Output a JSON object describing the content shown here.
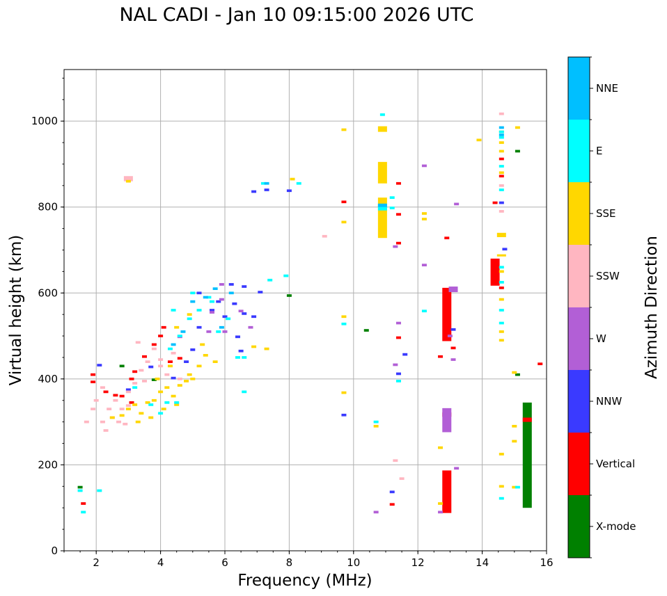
{
  "chart_data": {
    "type": "scatter",
    "title": "NAL CADI - Jan 10 09:15:00 2026 UTC",
    "xlabel": "Frequency (MHz)",
    "ylabel": "Virtual height (km)",
    "xlim": [
      1,
      16
    ],
    "ylim": [
      0,
      1120
    ],
    "xticks": [
      2,
      4,
      6,
      8,
      10,
      12,
      14,
      16
    ],
    "yticks": [
      0,
      200,
      400,
      600,
      800,
      1000
    ],
    "grid": true,
    "colorbar": {
      "label": "Azimuth Direction",
      "categories": [
        "X-mode",
        "Vertical",
        "NNW",
        "W",
        "SSW",
        "SSE",
        "E",
        "NNE"
      ],
      "colors": [
        "#008000",
        "#ff0000",
        "#3a3aff",
        "#b25fd6",
        "#ffb6c1",
        "#ffd700",
        "#00ffff",
        "#00bfff"
      ]
    },
    "series": [
      {
        "name": "X-mode",
        "points": [
          [
            15.4,
            100,
            345
          ],
          [
            10.4,
            513,
            513
          ],
          [
            15.1,
            930,
            930
          ],
          [
            15.1,
            410,
            410
          ],
          [
            8.0,
            594,
            594
          ],
          [
            1.5,
            148,
            148
          ],
          [
            3.8,
            398,
            398
          ],
          [
            2.8,
            430,
            430
          ]
        ]
      },
      {
        "name": "Vertical",
        "points": [
          [
            12.9,
            488,
            612
          ],
          [
            12.9,
            88,
            187
          ],
          [
            14.4,
            617,
            680
          ],
          [
            12.9,
            312,
            322
          ],
          [
            12.9,
            728,
            728
          ],
          [
            15.4,
            300,
            310
          ],
          [
            9.7,
            812,
            812
          ],
          [
            11.4,
            855,
            855
          ],
          [
            11.4,
            783,
            783
          ],
          [
            11.4,
            716,
            716
          ],
          [
            11.4,
            496,
            496
          ],
          [
            13.1,
            472,
            472
          ],
          [
            12.7,
            452,
            452
          ],
          [
            14.6,
            612,
            612
          ],
          [
            14.4,
            810,
            810
          ],
          [
            14.6,
            872,
            872
          ],
          [
            14.6,
            912,
            912
          ],
          [
            11.2,
            108,
            108
          ],
          [
            15.8,
            435,
            435
          ],
          [
            1.6,
            110,
            110
          ],
          [
            1.9,
            393,
            393
          ],
          [
            1.9,
            410,
            410
          ],
          [
            2.3,
            370,
            370
          ],
          [
            2.6,
            362,
            362
          ],
          [
            2.8,
            360,
            360
          ],
          [
            3.1,
            400,
            400
          ],
          [
            3.2,
            417,
            417
          ],
          [
            3.5,
            452,
            452
          ],
          [
            3.8,
            480,
            480
          ],
          [
            4.0,
            500,
            500
          ],
          [
            4.3,
            440,
            440
          ],
          [
            3.1,
            345,
            345
          ],
          [
            4.1,
            520,
            520
          ],
          [
            4.6,
            448,
            448
          ]
        ]
      },
      {
        "name": "NNW",
        "points": [
          [
            13.1,
            515,
            515
          ],
          [
            11.4,
            412,
            412
          ],
          [
            11.6,
            457,
            457
          ],
          [
            11.2,
            137,
            137
          ],
          [
            9.7,
            316,
            316
          ],
          [
            14.7,
            702,
            702
          ],
          [
            14.6,
            810,
            810
          ],
          [
            8.0,
            838,
            838
          ],
          [
            7.3,
            840,
            840
          ],
          [
            6.9,
            836,
            836
          ],
          [
            6.2,
            620,
            620
          ],
          [
            6.6,
            615,
            615
          ],
          [
            5.2,
            600,
            600
          ],
          [
            5.6,
            560,
            560
          ],
          [
            6.0,
            545,
            545
          ],
          [
            6.3,
            575,
            575
          ],
          [
            6.6,
            552,
            552
          ],
          [
            6.9,
            545,
            545
          ],
          [
            6.5,
            465,
            465
          ],
          [
            5.0,
            468,
            468
          ],
          [
            5.2,
            520,
            520
          ],
          [
            5.8,
            580,
            580
          ],
          [
            4.8,
            440,
            440
          ],
          [
            6.4,
            498,
            498
          ],
          [
            7.1,
            602,
            602
          ],
          [
            2.1,
            432,
            432
          ],
          [
            3.0,
            375,
            375
          ],
          [
            3.7,
            428,
            428
          ],
          [
            4.4,
            402,
            402
          ]
        ]
      },
      {
        "name": "W",
        "points": [
          [
            12.9,
            276,
            332
          ],
          [
            13.1,
            602,
            615
          ],
          [
            13.0,
            500,
            500
          ],
          [
            13.1,
            445,
            445
          ],
          [
            13.2,
            807,
            807
          ],
          [
            12.2,
            665,
            665
          ],
          [
            12.2,
            896,
            896
          ],
          [
            11.3,
            433,
            433
          ],
          [
            11.4,
            530,
            530
          ],
          [
            11.3,
            708,
            708
          ],
          [
            10.7,
            90,
            90
          ],
          [
            12.7,
            90,
            90
          ],
          [
            13.2,
            192,
            192
          ],
          [
            5.9,
            585,
            585
          ],
          [
            5.6,
            555,
            555
          ],
          [
            6.0,
            510,
            510
          ],
          [
            6.8,
            520,
            520
          ],
          [
            6.5,
            558,
            558
          ],
          [
            5.5,
            510,
            510
          ],
          [
            4.6,
            498,
            498
          ],
          [
            5.9,
            620,
            620
          ]
        ]
      },
      {
        "name": "SSW",
        "points": [
          [
            11.3,
            210,
            210
          ],
          [
            11.5,
            168,
            168
          ],
          [
            14.6,
            1017,
            1017
          ],
          [
            14.6,
            850,
            850
          ],
          [
            14.6,
            790,
            790
          ],
          [
            9.1,
            732,
            732
          ],
          [
            2.2,
            300,
            300
          ],
          [
            2.4,
            330,
            330
          ],
          [
            2.6,
            350,
            350
          ],
          [
            2.8,
            330,
            330
          ],
          [
            3.0,
            370,
            370
          ],
          [
            3.2,
            390,
            390
          ],
          [
            3.4,
            420,
            420
          ],
          [
            3.6,
            440,
            440
          ],
          [
            3.8,
            470,
            470
          ],
          [
            4.0,
            430,
            430
          ],
          [
            4.2,
            410,
            410
          ],
          [
            4.4,
            460,
            460
          ],
          [
            4.6,
            400,
            400
          ],
          [
            2.0,
            350,
            350
          ],
          [
            2.2,
            380,
            380
          ],
          [
            2.5,
            310,
            310
          ],
          [
            2.7,
            300,
            300
          ],
          [
            3.0,
            338,
            338
          ],
          [
            3.3,
            485,
            485
          ],
          [
            1.7,
            300,
            300
          ],
          [
            1.9,
            330,
            330
          ],
          [
            3.0,
            860,
            872
          ],
          [
            2.9,
            295,
            295
          ],
          [
            2.3,
            280,
            280
          ],
          [
            4.0,
            445,
            445
          ],
          [
            3.5,
            395,
            395
          ]
        ]
      },
      {
        "name": "SSE",
        "points": [
          [
            10.9,
            728,
            822
          ],
          [
            10.9,
            855,
            905
          ],
          [
            10.9,
            975,
            988
          ],
          [
            15.1,
            985,
            985
          ],
          [
            14.6,
            730,
            740
          ],
          [
            14.6,
            685,
            690
          ],
          [
            14.6,
            650,
            650
          ],
          [
            14.6,
            585,
            585
          ],
          [
            14.6,
            510,
            510
          ],
          [
            14.6,
            490,
            490
          ],
          [
            14.6,
            225,
            225
          ],
          [
            14.6,
            150,
            150
          ],
          [
            15.0,
            415,
            415
          ],
          [
            15.0,
            290,
            290
          ],
          [
            15.0,
            255,
            255
          ],
          [
            15.0,
            148,
            148
          ],
          [
            12.7,
            240,
            240
          ],
          [
            12.7,
            110,
            110
          ],
          [
            12.2,
            785,
            785
          ],
          [
            12.2,
            772,
            772
          ],
          [
            13.9,
            956,
            956
          ],
          [
            9.7,
            980,
            980
          ],
          [
            9.7,
            765,
            765
          ],
          [
            9.7,
            545,
            545
          ],
          [
            9.7,
            368,
            368
          ],
          [
            10.7,
            290,
            290
          ],
          [
            3.0,
            860,
            860
          ],
          [
            2.5,
            310,
            310
          ],
          [
            2.8,
            315,
            315
          ],
          [
            3.0,
            330,
            330
          ],
          [
            3.2,
            340,
            340
          ],
          [
            3.4,
            320,
            320
          ],
          [
            3.6,
            345,
            345
          ],
          [
            3.8,
            350,
            350
          ],
          [
            4.0,
            370,
            370
          ],
          [
            4.2,
            380,
            380
          ],
          [
            4.4,
            360,
            360
          ],
          [
            4.6,
            385,
            385
          ],
          [
            4.8,
            395,
            395
          ],
          [
            5.0,
            400,
            400
          ],
          [
            5.2,
            430,
            430
          ],
          [
            5.4,
            455,
            455
          ],
          [
            3.9,
            400,
            400
          ],
          [
            4.3,
            430,
            430
          ],
          [
            4.5,
            520,
            520
          ],
          [
            4.9,
            550,
            550
          ],
          [
            5.3,
            480,
            480
          ],
          [
            5.7,
            440,
            440
          ],
          [
            3.3,
            300,
            300
          ],
          [
            3.7,
            310,
            310
          ],
          [
            4.1,
            330,
            330
          ],
          [
            4.5,
            340,
            340
          ],
          [
            4.9,
            410,
            410
          ],
          [
            6.9,
            475,
            475
          ],
          [
            7.3,
            470,
            470
          ],
          [
            8.1,
            865,
            865
          ],
          [
            14.6,
            930,
            930
          ],
          [
            14.6,
            950,
            950
          ],
          [
            14.6,
            880,
            880
          ],
          [
            14.6,
            975,
            975
          ]
        ]
      },
      {
        "name": "E",
        "points": [
          [
            10.9,
            792,
            805
          ],
          [
            10.9,
            1015,
            1015
          ],
          [
            11.2,
            822,
            822
          ],
          [
            11.2,
            798,
            798
          ],
          [
            11.4,
            395,
            395
          ],
          [
            12.2,
            558,
            558
          ],
          [
            14.6,
            530,
            530
          ],
          [
            14.6,
            560,
            560
          ],
          [
            14.6,
            625,
            625
          ],
          [
            14.6,
            660,
            660
          ],
          [
            14.6,
            840,
            840
          ],
          [
            14.6,
            895,
            895
          ],
          [
            14.6,
            962,
            962
          ],
          [
            14.6,
            975,
            975
          ],
          [
            14.6,
            122,
            122
          ],
          [
            15.1,
            148,
            148
          ],
          [
            9.7,
            528,
            528
          ],
          [
            10.7,
            300,
            300
          ],
          [
            1.6,
            90,
            90
          ],
          [
            1.5,
            140,
            140
          ],
          [
            2.1,
            140,
            140
          ],
          [
            7.2,
            855,
            855
          ],
          [
            7.9,
            640,
            640
          ],
          [
            7.4,
            630,
            630
          ],
          [
            6.6,
            450,
            450
          ],
          [
            6.4,
            450,
            450
          ],
          [
            6.6,
            370,
            370
          ],
          [
            6.1,
            540,
            540
          ],
          [
            5.6,
            580,
            580
          ],
          [
            5.2,
            560,
            560
          ],
          [
            4.9,
            540,
            540
          ],
          [
            4.6,
            500,
            500
          ],
          [
            4.3,
            470,
            470
          ],
          [
            4.0,
            320,
            320
          ],
          [
            3.7,
            340,
            340
          ],
          [
            4.2,
            345,
            345
          ],
          [
            4.5,
            345,
            345
          ],
          [
            5.5,
            590,
            590
          ],
          [
            5.0,
            600,
            600
          ],
          [
            4.4,
            560,
            560
          ],
          [
            3.2,
            380,
            380
          ],
          [
            5.8,
            510,
            510
          ],
          [
            8.3,
            855,
            855
          ]
        ]
      },
      {
        "name": "NNE",
        "points": [
          [
            10.9,
            800,
            808
          ],
          [
            14.6,
            985,
            985
          ],
          [
            14.6,
            968,
            968
          ],
          [
            5.7,
            610,
            610
          ],
          [
            5.4,
            590,
            590
          ],
          [
            5.0,
            580,
            580
          ],
          [
            4.7,
            510,
            510
          ],
          [
            5.9,
            520,
            520
          ],
          [
            4.4,
            480,
            480
          ],
          [
            7.3,
            855,
            855
          ],
          [
            6.2,
            600,
            600
          ]
        ]
      }
    ]
  }
}
